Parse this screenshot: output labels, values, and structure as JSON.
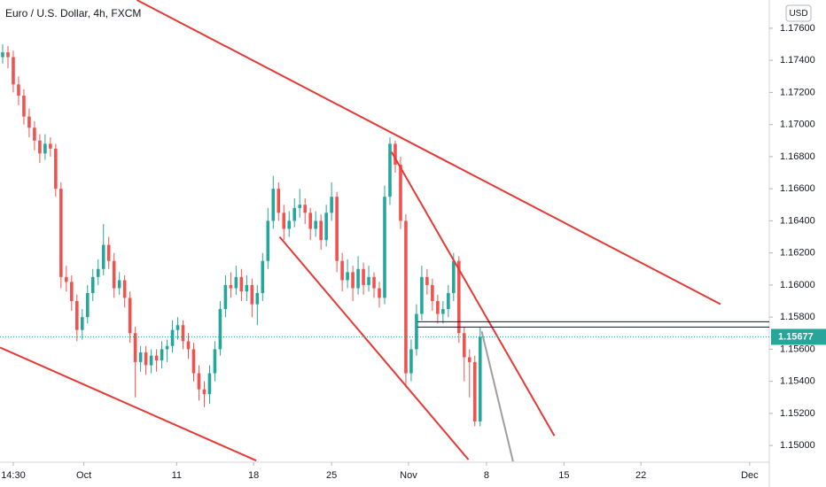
{
  "chart_data": {
    "type": "candlestick",
    "title": "Euro / U.S. Dollar, 4h, FXCM",
    "currency": "USD",
    "up_color": "#26a69a",
    "down_color": "#ef5350",
    "x": [
      0,
      1,
      2,
      3,
      4,
      5,
      6,
      7,
      8,
      9,
      10,
      11,
      12,
      13,
      14,
      15,
      16,
      17,
      18,
      19,
      20,
      21,
      22,
      23,
      24,
      25,
      26,
      27,
      28,
      29,
      30,
      31,
      32,
      33,
      34,
      35,
      36,
      37,
      38,
      39,
      40,
      41,
      42,
      43,
      44,
      45,
      46,
      47,
      48,
      49,
      50,
      51,
      52,
      53,
      54,
      55,
      56,
      57,
      58,
      59,
      60,
      61,
      62,
      63,
      64,
      65,
      66,
      67,
      68,
      69,
      70,
      71,
      72,
      73,
      74,
      75,
      76,
      77,
      78,
      79,
      80,
      81,
      82,
      83,
      84,
      85,
      86,
      87,
      88,
      89,
      90
    ],
    "open": [
      1.1742,
      1.1745,
      1.1742,
      1.1725,
      1.1718,
      1.1705,
      1.1698,
      1.169,
      1.1682,
      1.1688,
      1.1685,
      1.166,
      1.1605,
      1.1602,
      1.159,
      1.1572,
      1.158,
      1.1595,
      1.1605,
      1.161,
      1.1625,
      1.1615,
      1.1598,
      1.1603,
      1.1592,
      1.157,
      1.1552,
      1.1558,
      1.155,
      1.1556,
      1.1553,
      1.156,
      1.1562,
      1.1572,
      1.1575,
      1.1565,
      1.156,
      1.1545,
      1.1535,
      1.1532,
      1.1545,
      1.156,
      1.1585,
      1.16,
      1.1598,
      1.1605,
      1.1596,
      1.16,
      1.1588,
      1.1595,
      1.1615,
      1.164,
      1.166,
      1.1645,
      1.1635,
      1.164,
      1.1648,
      1.165,
      1.1645,
      1.1635,
      1.164,
      1.1628,
      1.1645,
      1.1655,
      1.1615,
      1.1603,
      1.1608,
      1.1598,
      1.161,
      1.16,
      1.1605,
      1.1598,
      1.1592,
      1.1655,
      1.1688,
      1.1675,
      1.164,
      1.1545,
      1.156,
      1.1582,
      1.1605,
      1.16,
      1.159,
      1.1582,
      1.1585,
      1.1595,
      1.1615,
      1.157,
      1.1555,
      1.1552,
      1.1515
    ],
    "high": [
      1.175,
      1.1749,
      1.1746,
      1.173,
      1.1722,
      1.171,
      1.1702,
      1.1694,
      1.1694,
      1.1692,
      1.1688,
      1.1664,
      1.1612,
      1.1606,
      1.1594,
      1.1585,
      1.16,
      1.161,
      1.1616,
      1.1638,
      1.163,
      1.162,
      1.1608,
      1.1606,
      1.1596,
      1.1574,
      1.1562,
      1.1562,
      1.156,
      1.156,
      1.1565,
      1.1566,
      1.1578,
      1.158,
      1.1578,
      1.157,
      1.1564,
      1.155,
      1.154,
      1.155,
      1.1565,
      1.159,
      1.1606,
      1.1608,
      1.1612,
      1.161,
      1.1606,
      1.1604,
      1.16,
      1.162,
      1.1648,
      1.1668,
      1.1664,
      1.165,
      1.1646,
      1.1654,
      1.166,
      1.1654,
      1.1648,
      1.1646,
      1.1644,
      1.165,
      1.1664,
      1.1658,
      1.162,
      1.1616,
      1.1612,
      1.1618,
      1.1614,
      1.1612,
      1.1608,
      1.1602,
      1.1662,
      1.1692,
      1.169,
      1.168,
      1.1644,
      1.1566,
      1.1588,
      1.1612,
      1.161,
      1.1604,
      1.1594,
      1.159,
      1.16,
      1.162,
      1.1618,
      1.1574,
      1.156,
      1.1556,
      1.1574
    ],
    "low": [
      1.1738,
      1.1735,
      1.172,
      1.1712,
      1.17,
      1.1692,
      1.1684,
      1.1676,
      1.1678,
      1.168,
      1.1655,
      1.1598,
      1.1596,
      1.1584,
      1.1565,
      1.1566,
      1.1576,
      1.159,
      1.16,
      1.1606,
      1.161,
      1.1592,
      1.1594,
      1.1586,
      1.1564,
      1.153,
      1.1546,
      1.1544,
      1.1545,
      1.1546,
      1.1548,
      1.1552,
      1.1558,
      1.1566,
      1.156,
      1.1554,
      1.154,
      1.1528,
      1.1524,
      1.1526,
      1.154,
      1.1556,
      1.158,
      1.1592,
      1.1594,
      1.159,
      1.159,
      1.158,
      1.1575,
      1.159,
      1.161,
      1.1635,
      1.164,
      1.1628,
      1.163,
      1.1636,
      1.1642,
      1.1638,
      1.1628,
      1.163,
      1.1622,
      1.1624,
      1.164,
      1.1608,
      1.1596,
      1.1598,
      1.159,
      1.1594,
      1.1594,
      1.1596,
      1.1592,
      1.1586,
      1.1588,
      1.165,
      1.167,
      1.1635,
      1.1536,
      1.154,
      1.1556,
      1.1578,
      1.1594,
      1.1584,
      1.1576,
      1.1576,
      1.158,
      1.159,
      1.1564,
      1.154,
      1.153,
      1.1512,
      1.1512
    ],
    "close": [
      1.1745,
      1.1742,
      1.1725,
      1.1718,
      1.1705,
      1.1698,
      1.169,
      1.1682,
      1.1688,
      1.1685,
      1.166,
      1.1605,
      1.1602,
      1.159,
      1.1572,
      1.158,
      1.1595,
      1.1605,
      1.161,
      1.1625,
      1.1615,
      1.1598,
      1.1603,
      1.1592,
      1.157,
      1.1552,
      1.1558,
      1.155,
      1.1556,
      1.1553,
      1.156,
      1.1562,
      1.1572,
      1.1575,
      1.1565,
      1.156,
      1.1545,
      1.1535,
      1.1532,
      1.1545,
      1.156,
      1.1585,
      1.16,
      1.1598,
      1.1605,
      1.1596,
      1.16,
      1.1588,
      1.1595,
      1.1615,
      1.164,
      1.166,
      1.1645,
      1.1635,
      1.164,
      1.1648,
      1.165,
      1.1645,
      1.1635,
      1.164,
      1.1628,
      1.1645,
      1.1655,
      1.1615,
      1.1603,
      1.1608,
      1.1598,
      1.161,
      1.16,
      1.1605,
      1.1598,
      1.1592,
      1.1655,
      1.1688,
      1.1675,
      1.164,
      1.1545,
      1.156,
      1.1582,
      1.1605,
      1.16,
      1.159,
      1.1582,
      1.1585,
      1.1595,
      1.1615,
      1.157,
      1.1555,
      1.1552,
      1.1515,
      1.15677
    ],
    "last_price": 1.15677,
    "price_color": "#26a69a",
    "drawings": [
      {
        "color": "#e53935",
        "x": [
          25.3,
          135.3
        ],
        "y": [
          1.17776,
          1.15881
        ]
      },
      {
        "color": "#e53935",
        "x": [
          -0.5,
          47.8
        ],
        "y": [
          1.15611,
          1.14906
        ]
      },
      {
        "color": "#e53935",
        "x": [
          52.2,
          87.8
        ],
        "y": [
          1.163,
          1.14912
        ]
      },
      {
        "color": "#e53935",
        "x": [
          73.3,
          104
        ],
        "y": [
          1.16829,
          1.1506
        ]
      },
      {
        "color": "#9e9e9e",
        "x": [
          90.3,
          96.2
        ],
        "y": [
          1.15711,
          1.14901
        ]
      },
      {
        "color": "#131722",
        "x": [
          78.2,
          144.5
        ],
        "y": [
          1.15771,
          1.15771
        ]
      },
      {
        "color": "#131722",
        "x": [
          78.2,
          144.5
        ],
        "y": [
          1.15738,
          1.15738
        ]
      }
    ],
    "xlim": [
      -0.5,
      144.5
    ],
    "xticks": [
      {
        "value": 2,
        "label": "14:30"
      },
      {
        "value": 15.3,
        "label": "Oct"
      },
      {
        "value": 32.8,
        "label": "11"
      },
      {
        "value": 47.3,
        "label": "18"
      },
      {
        "value": 62,
        "label": "25"
      },
      {
        "value": 76.5,
        "label": "Nov"
      },
      {
        "value": 91.2,
        "label": "8"
      },
      {
        "value": 105.8,
        "label": "15"
      },
      {
        "value": 120.3,
        "label": "22"
      },
      {
        "value": 140.8,
        "label": "Dec"
      }
    ],
    "ylim": [
      1.14896,
      1.17776
    ],
    "yticks": [
      {
        "value": 1.15,
        "label": "1.15000"
      },
      {
        "value": 1.152,
        "label": "1.15200"
      },
      {
        "value": 1.154,
        "label": "1.15400"
      },
      {
        "value": 1.156,
        "label": "1.15600"
      },
      {
        "value": 1.158,
        "label": "1.15800"
      },
      {
        "value": 1.16,
        "label": "1.16000"
      },
      {
        "value": 1.162,
        "label": "1.16200"
      },
      {
        "value": 1.164,
        "label": "1.16400"
      },
      {
        "value": 1.166,
        "label": "1.16600"
      },
      {
        "value": 1.168,
        "label": "1.16800"
      },
      {
        "value": 1.17,
        "label": "1.17000"
      },
      {
        "value": 1.172,
        "label": "1.17200"
      },
      {
        "value": 1.174,
        "label": "1.17400"
      },
      {
        "value": 1.176,
        "label": "1.17600"
      }
    ]
  }
}
